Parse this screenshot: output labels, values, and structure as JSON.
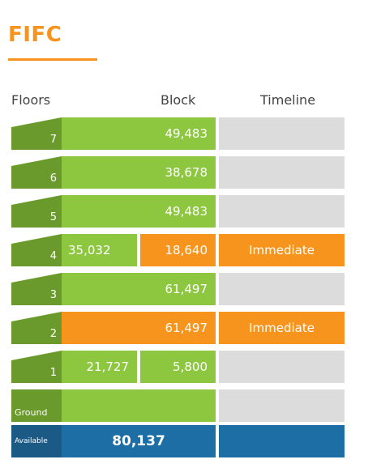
{
  "title": "FIFC",
  "headers": {
    "floors": "Floors",
    "block": "Block",
    "timeline": "Timeline"
  },
  "rows": [
    {
      "floor": "7",
      "cells": [
        "49,483"
      ],
      "timeline": ""
    },
    {
      "floor": "6",
      "cells": [
        "38,678"
      ],
      "timeline": ""
    },
    {
      "floor": "5",
      "cells": [
        "49,483"
      ],
      "timeline": ""
    },
    {
      "floor": "4",
      "cells": [
        "35,032",
        "18,640"
      ],
      "timeline": "Immediate"
    },
    {
      "floor": "3",
      "cells": [
        "61,497"
      ],
      "timeline": ""
    },
    {
      "floor": "2",
      "cells": [
        "61,497"
      ],
      "timeline": "Immediate"
    },
    {
      "floor": "1",
      "cells": [
        "21,727",
        "5,800"
      ],
      "timeline": ""
    },
    {
      "floor": "Ground",
      "cells": [
        ""
      ],
      "timeline": ""
    }
  ],
  "total": {
    "label": "Available",
    "value": "80,137"
  },
  "colors": {
    "accent": "#f7941d",
    "green": "#8dc63f",
    "dark_green": "#6a9a2b",
    "orange": "#f7941d",
    "gray": "#dcdcdc",
    "blue": "#1c6ea4"
  }
}
